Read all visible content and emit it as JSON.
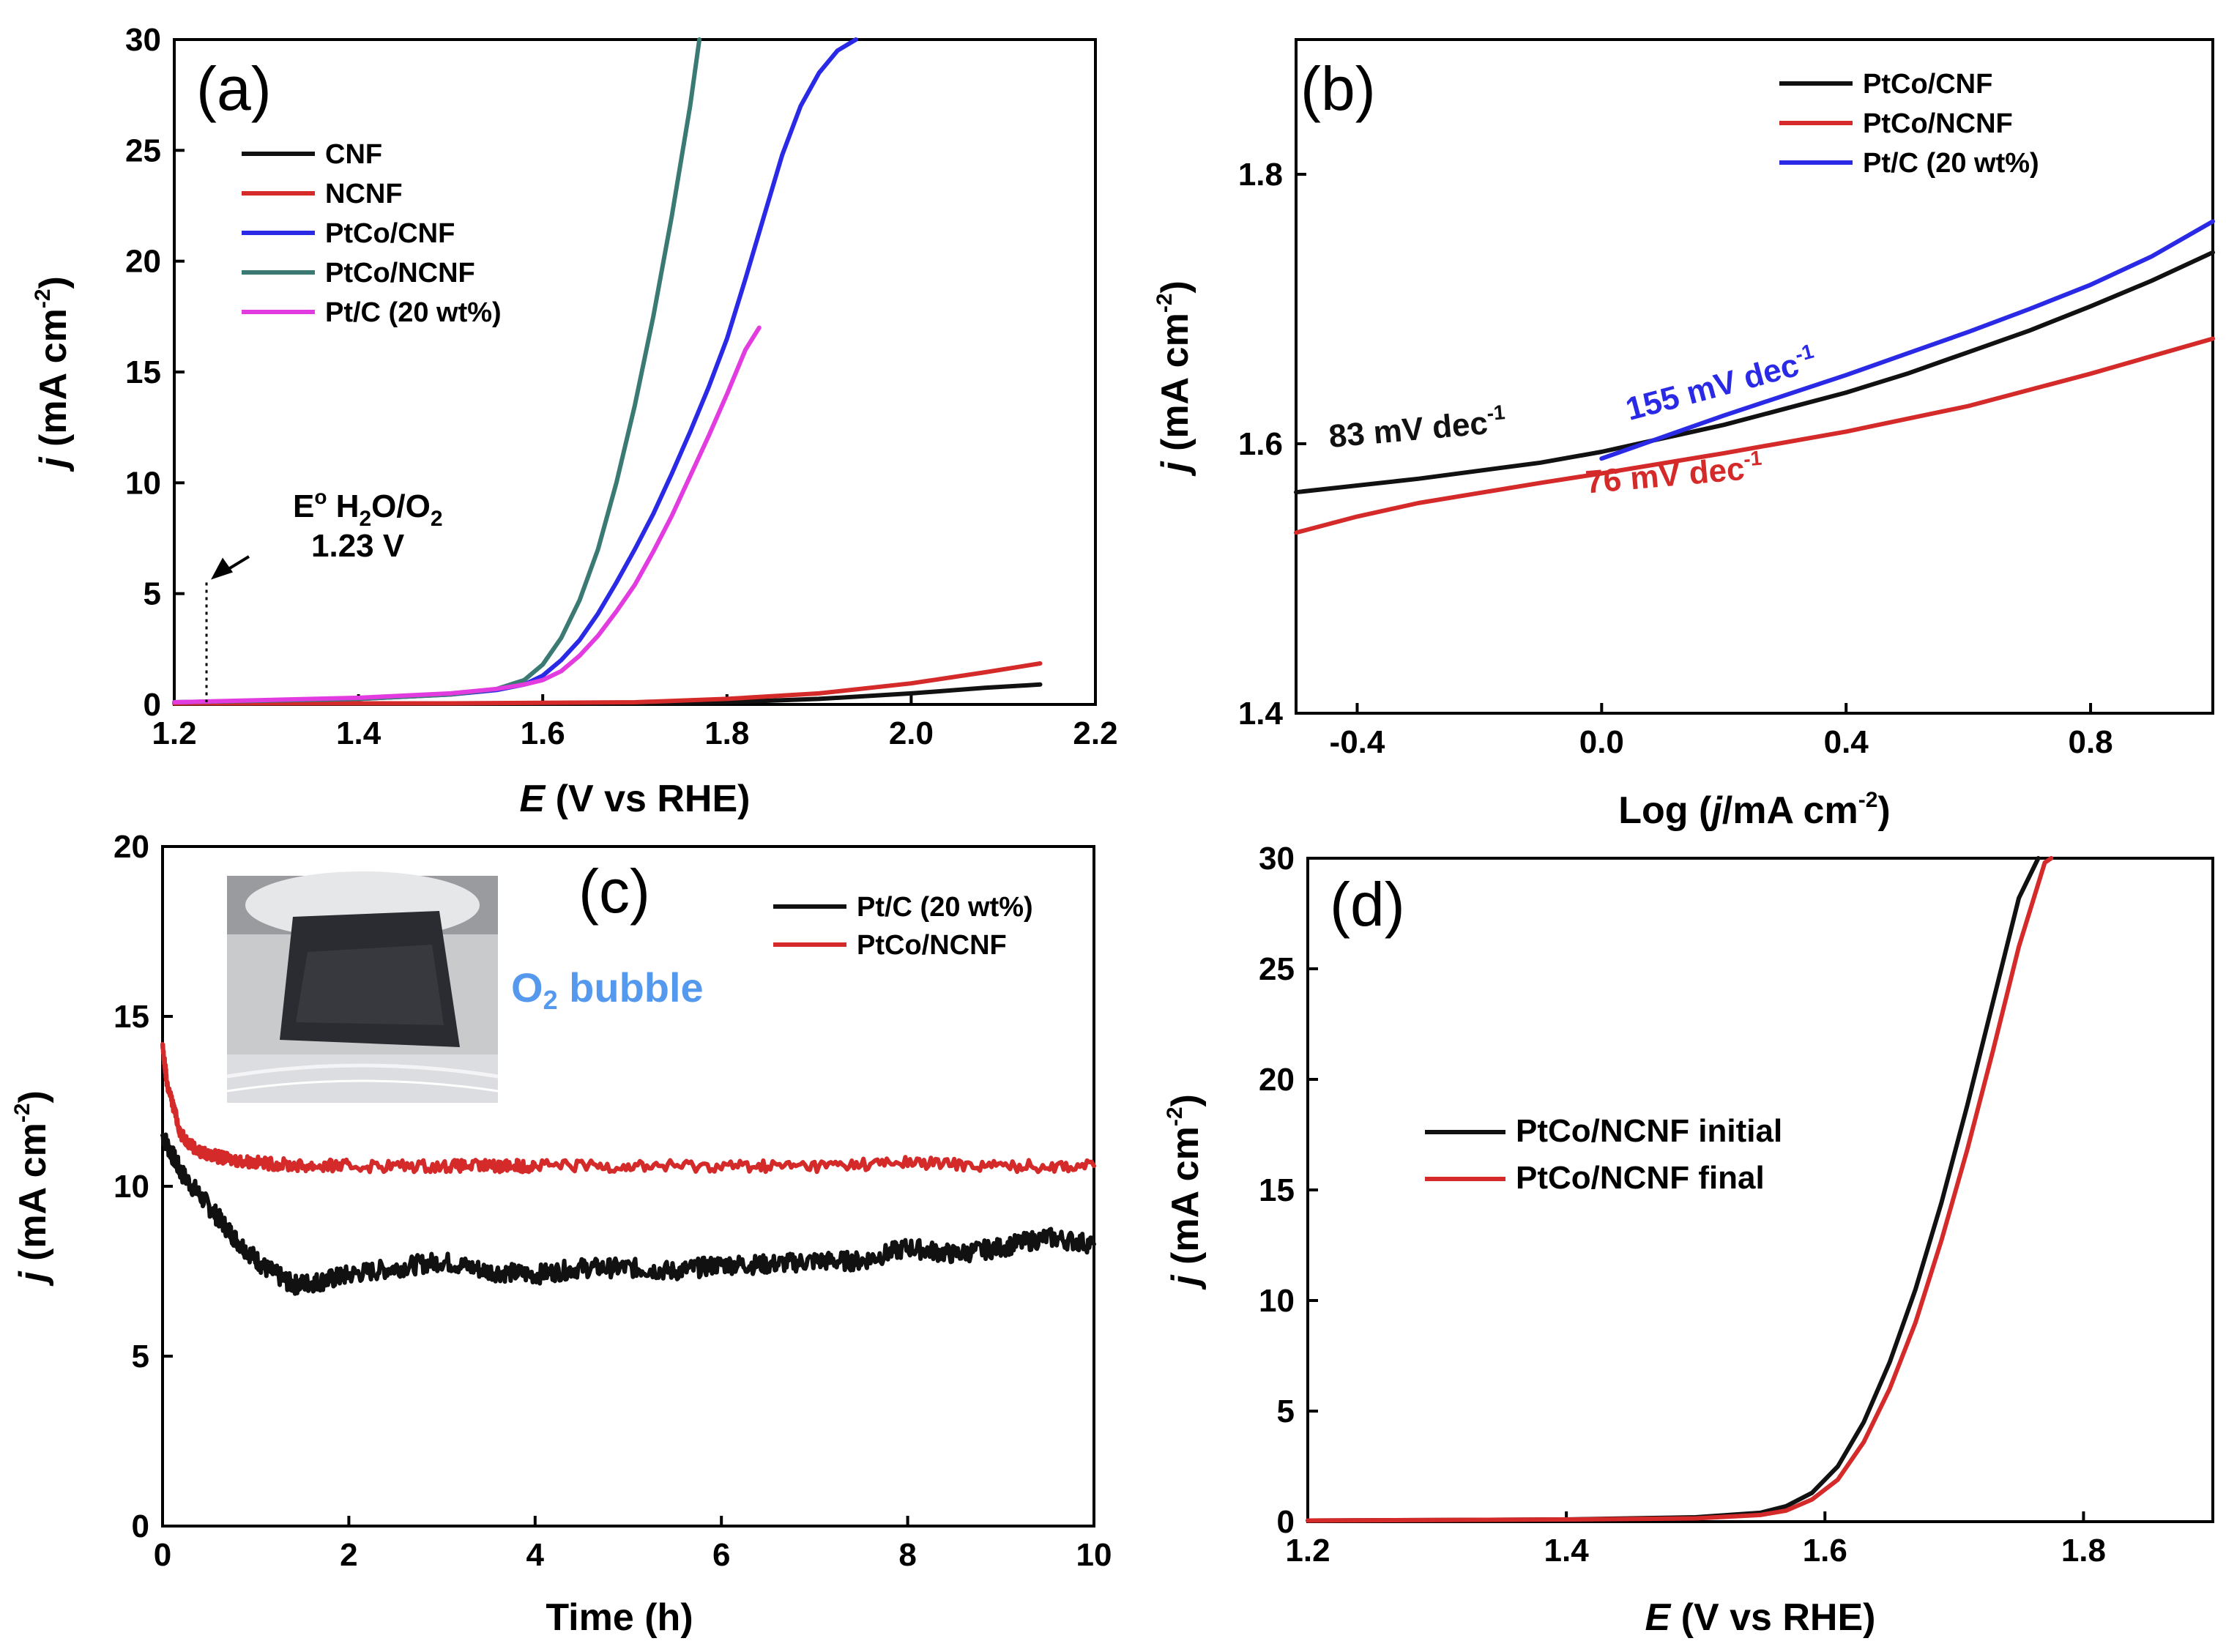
{
  "colors": {
    "black": "#111111",
    "red": "#d42a2a",
    "blue": "#2a2ae6",
    "teal": "#3a7a72",
    "magenta": "#e23ce0",
    "o2_text": "#5599ee"
  },
  "chart_data": [
    {
      "panel": "(a)",
      "type": "line",
      "xlabel_italic": "E",
      "xlabel_rest": " (V vs RHE)",
      "ylabel_italic": "j",
      "ylabel_rest": " (mA cm",
      "ylabel_sup": "-2",
      "ylabel_close": ")",
      "xlim": [
        1.2,
        2.2
      ],
      "ylim": [
        0,
        30
      ],
      "xticks": [
        "1.2",
        "1.4",
        "1.6",
        "1.8",
        "2.0",
        "2.2"
      ],
      "yticks": [
        "0",
        "5",
        "10",
        "15",
        "20",
        "25",
        "30"
      ],
      "legend_position": "upper-left",
      "annotation": {
        "line1_pre": "E",
        "line1_sup": "o",
        "line1_mid": " H",
        "line1_sub1": "2",
        "line1_mid2": "O/O",
        "line1_sub2": "2",
        "line2": "1.23 V",
        "x": 1.235
      },
      "series": [
        {
          "name": "CNF",
          "color_key": "black",
          "x": [
            1.2,
            1.5,
            1.7,
            1.8,
            1.9,
            2.0,
            2.08,
            2.14
          ],
          "y": [
            0.05,
            0.05,
            0.05,
            0.1,
            0.25,
            0.5,
            0.75,
            0.9
          ]
        },
        {
          "name": "NCNF",
          "color_key": "red",
          "x": [
            1.2,
            1.5,
            1.7,
            1.8,
            1.9,
            2.0,
            2.08,
            2.14
          ],
          "y": [
            0.05,
            0.05,
            0.1,
            0.25,
            0.5,
            0.95,
            1.45,
            1.85
          ]
        },
        {
          "name": "PtCo/CNF",
          "color_key": "blue",
          "x": [
            1.2,
            1.4,
            1.5,
            1.55,
            1.58,
            1.6,
            1.62,
            1.64,
            1.66,
            1.68,
            1.7,
            1.72,
            1.74,
            1.76,
            1.78,
            1.8,
            1.82,
            1.84,
            1.86,
            1.88,
            1.9,
            1.92,
            1.94
          ],
          "y": [
            0.1,
            0.25,
            0.45,
            0.65,
            0.9,
            1.3,
            2.0,
            2.9,
            4.1,
            5.5,
            7.0,
            8.6,
            10.4,
            12.3,
            14.3,
            16.5,
            19.2,
            22.0,
            24.8,
            27.0,
            28.5,
            29.5,
            30
          ]
        },
        {
          "name": "PtCo/NCNF",
          "color_key": "teal",
          "x": [
            1.2,
            1.4,
            1.5,
            1.55,
            1.58,
            1.6,
            1.62,
            1.64,
            1.66,
            1.68,
            1.7,
            1.72,
            1.74,
            1.76,
            1.77
          ],
          "y": [
            0.1,
            0.25,
            0.45,
            0.7,
            1.1,
            1.8,
            3.0,
            4.7,
            7.0,
            10.0,
            13.5,
            17.5,
            22.0,
            27.0,
            30
          ]
        },
        {
          "name": "Pt/C (20 wt%)",
          "color_key": "magenta",
          "x": [
            1.2,
            1.4,
            1.5,
            1.55,
            1.58,
            1.6,
            1.62,
            1.64,
            1.66,
            1.68,
            1.7,
            1.72,
            1.74,
            1.76,
            1.78,
            1.8,
            1.82,
            1.835
          ],
          "y": [
            0.1,
            0.3,
            0.5,
            0.7,
            0.9,
            1.1,
            1.5,
            2.2,
            3.1,
            4.2,
            5.4,
            6.9,
            8.5,
            10.3,
            12.1,
            14.0,
            16.0,
            17.0
          ]
        }
      ]
    },
    {
      "panel": "(b)",
      "type": "line",
      "xlabel": "Log (",
      "xlabel_italic": "j",
      "xlabel_rest": "/mA cm",
      "xlabel_sup": "-2",
      "xlabel_close": ")",
      "ylabel_italic": "j",
      "ylabel_rest": " (mA cm",
      "ylabel_sup": "-2",
      "ylabel_close": ")",
      "xlim": [
        -0.5,
        1.0
      ],
      "ylim": [
        1.4,
        1.9
      ],
      "xticks_values": [
        -0.4,
        0.0,
        0.4,
        0.8
      ],
      "xticks": [
        "-0.4",
        "0.0",
        "0.4",
        "0.8"
      ],
      "yticks_values": [
        1.4,
        1.6,
        1.8
      ],
      "yticks": [
        "1.4",
        "1.6",
        "1.8"
      ],
      "legend_position": "top-right",
      "annotations": [
        {
          "text": "83 mV dec",
          "sup": "-1",
          "color_key": "black",
          "x": -0.3,
          "y": 1.603,
          "rot": -5
        },
        {
          "text": "155 mV dec",
          "sup": "-1",
          "color_key": "blue",
          "x": 0.2,
          "y": 1.636,
          "rot": -15
        },
        {
          "text": "76 mV dec",
          "sup": "-1",
          "color_key": "red",
          "x": 0.12,
          "y": 1.569,
          "rot": -5
        }
      ],
      "series": [
        {
          "name": "PtCo/CNF",
          "color_key": "black",
          "x": [
            -0.5,
            -0.3,
            -0.1,
            0.0,
            0.1,
            0.2,
            0.3,
            0.4,
            0.5,
            0.6,
            0.7,
            0.8,
            0.9,
            1.0
          ],
          "y": [
            1.564,
            1.574,
            1.586,
            1.594,
            1.604,
            1.614,
            1.626,
            1.638,
            1.652,
            1.668,
            1.684,
            1.702,
            1.721,
            1.742
          ]
        },
        {
          "name": "PtCo/NCNF",
          "color_key": "red",
          "x": [
            -0.5,
            -0.4,
            -0.3,
            -0.1,
            0.0,
            0.2,
            0.4,
            0.6,
            0.8,
            1.0
          ],
          "y": [
            1.534,
            1.546,
            1.556,
            1.571,
            1.578,
            1.593,
            1.609,
            1.628,
            1.652,
            1.678
          ]
        },
        {
          "name": "Pt/C (20 wt%)",
          "color_key": "blue",
          "x": [
            0.0,
            0.1,
            0.2,
            0.3,
            0.4,
            0.5,
            0.6,
            0.7,
            0.8,
            0.9,
            1.0
          ],
          "y": [
            1.589,
            1.605,
            1.621,
            1.636,
            1.651,
            1.667,
            1.683,
            1.7,
            1.718,
            1.739,
            1.765
          ]
        }
      ]
    },
    {
      "panel": "(c)",
      "type": "line",
      "xlabel": "Time (h)",
      "ylabel_italic": "j",
      "ylabel_rest": " (mA cm",
      "ylabel_sup": "-2",
      "ylabel_close": ")",
      "xlim": [
        0,
        10
      ],
      "ylim": [
        0,
        20
      ],
      "xticks": [
        "0",
        "2",
        "4",
        "6",
        "8",
        "10"
      ],
      "yticks": [
        "0",
        "5",
        "10",
        "15",
        "20"
      ],
      "legend_position": "top-right",
      "inset_caption_main": "O",
      "inset_caption_sub": "2",
      "inset_caption_rest": " bubble",
      "series": [
        {
          "name": "Pt/C (20 wt%)",
          "color_key": "black",
          "x": [
            0,
            0.2,
            0.5,
            0.8,
            1.1,
            1.4,
            1.7,
            2.0,
            2.5,
            3.0,
            3.5,
            4.0,
            4.5,
            5.0,
            5.5,
            6.0,
            6.5,
            7.0,
            7.5,
            8.0,
            8.5,
            9.0,
            9.5,
            10.0
          ],
          "y": [
            11.5,
            10.4,
            9.4,
            8.4,
            7.6,
            7.1,
            7.2,
            7.4,
            7.6,
            7.8,
            7.5,
            7.4,
            7.6,
            7.6,
            7.5,
            7.7,
            7.7,
            7.8,
            7.8,
            8.2,
            8.0,
            8.2,
            8.5,
            8.3
          ]
        },
        {
          "name": "PtCo/NCNF",
          "color_key": "red",
          "x": [
            0,
            0.05,
            0.2,
            0.4,
            0.7,
            1.0,
            1.5,
            2.0,
            3.0,
            3.6,
            3.7,
            4.0,
            5.0,
            6.0,
            7.0,
            8.0,
            9.0,
            10.0
          ],
          "y": [
            14.1,
            13.0,
            11.5,
            11.0,
            10.8,
            10.7,
            10.6,
            10.6,
            10.6,
            10.6,
            10.6,
            10.6,
            10.6,
            10.6,
            10.6,
            10.7,
            10.6,
            10.6
          ]
        }
      ]
    },
    {
      "panel": "(d)",
      "type": "line",
      "xlabel_italic": "E",
      "xlabel_rest": " (V vs RHE)",
      "ylabel_italic": "j",
      "ylabel_rest": " (mA cm",
      "ylabel_sup": "-2",
      "ylabel_close": ")",
      "xlim": [
        1.2,
        1.9
      ],
      "ylim": [
        0,
        30
      ],
      "xticks": [
        "1.2",
        "1.4",
        "1.6",
        "1.8"
      ],
      "yticks": [
        "0",
        "5",
        "10",
        "15",
        "20",
        "25",
        "30"
      ],
      "legend_position": "center-left",
      "series": [
        {
          "name": "PtCo/NCNF initial",
          "color_key": "black",
          "x": [
            1.2,
            1.4,
            1.5,
            1.55,
            1.57,
            1.59,
            1.61,
            1.63,
            1.65,
            1.67,
            1.69,
            1.71,
            1.73,
            1.75,
            1.765
          ],
          "y": [
            0.05,
            0.1,
            0.2,
            0.4,
            0.7,
            1.3,
            2.5,
            4.5,
            7.2,
            10.5,
            14.4,
            18.8,
            23.5,
            28.2,
            30
          ]
        },
        {
          "name": "PtCo/NCNF final",
          "color_key": "red",
          "x": [
            1.2,
            1.4,
            1.5,
            1.55,
            1.57,
            1.59,
            1.61,
            1.63,
            1.65,
            1.67,
            1.69,
            1.71,
            1.73,
            1.75,
            1.77,
            1.775
          ],
          "y": [
            0.05,
            0.1,
            0.15,
            0.3,
            0.5,
            1.0,
            1.9,
            3.6,
            6.0,
            9.0,
            12.7,
            16.8,
            21.3,
            26.0,
            29.8,
            30
          ]
        }
      ]
    }
  ]
}
